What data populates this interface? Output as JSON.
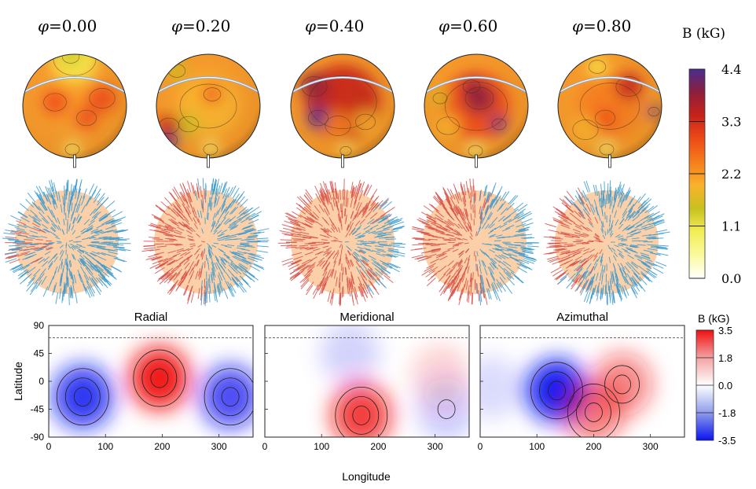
{
  "top_panels": {
    "phase_symbol": "φ",
    "phases": [
      "=0.00",
      "=0.20",
      "=0.40",
      "=0.60",
      "=0.80"
    ],
    "colorbar": {
      "label": "B (kG)",
      "ticks": [
        "4.4",
        "3.3",
        "2.2",
        "1.1",
        "0.0"
      ],
      "colors": [
        "#ffffff",
        "#fbfa9e",
        "#f2ee57",
        "#c8c021",
        "#f9b22c",
        "#f57d1c",
        "#ee4b17",
        "#c6231a",
        "#8e1f3b",
        "#4a2c8f"
      ]
    }
  },
  "bottom_panels": {
    "titles": [
      "Radial",
      "Meridional",
      "Azimuthal"
    ],
    "ylabel": "Latitude",
    "xlabel": "Longitude",
    "yticks": [
      "90",
      "45",
      "0",
      "-45",
      "-90"
    ],
    "xticks": [
      "0",
      "100",
      "200",
      "300"
    ],
    "colorbar": {
      "label": "B (kG)",
      "ticks": [
        "3.5",
        "1.8",
        "0.0",
        "-1.8",
        "-3.5"
      ],
      "colors": [
        "#0a14f0",
        "#8f9cec",
        "#ffffff",
        "#f3a2a2",
        "#f01010"
      ]
    }
  },
  "chart_data": [
    {
      "type": "heatmap",
      "title": "Radial",
      "xlabel": "Longitude",
      "ylabel": "Latitude",
      "xlim": [
        0,
        360
      ],
      "ylim": [
        -90,
        90
      ],
      "blobs": [
        {
          "x": 195,
          "y": 5,
          "value": 3.3
        },
        {
          "x": 60,
          "y": -25,
          "value": -3.0
        },
        {
          "x": 320,
          "y": -25,
          "value": -2.6
        }
      ]
    },
    {
      "type": "heatmap",
      "title": "Meridional",
      "xlabel": "Longitude",
      "xlim": [
        0,
        360
      ],
      "ylim": [
        -90,
        90
      ],
      "blobs": [
        {
          "x": 170,
          "y": -55,
          "value": 2.8
        },
        {
          "x": 150,
          "y": 45,
          "value": -0.6
        },
        {
          "x": 320,
          "y": -45,
          "value": -0.7
        },
        {
          "x": 310,
          "y": 10,
          "value": 0.6
        }
      ]
    },
    {
      "type": "heatmap",
      "title": "Azimuthal",
      "xlabel": "Longitude",
      "xlim": [
        0,
        360
      ],
      "ylim": [
        -90,
        90
      ],
      "blobs": [
        {
          "x": 135,
          "y": -15,
          "value": -3.4
        },
        {
          "x": 250,
          "y": -5,
          "value": 1.8
        },
        {
          "x": 200,
          "y": -50,
          "value": 1.9
        },
        {
          "x": 20,
          "y": -10,
          "value": -0.5
        }
      ]
    }
  ]
}
